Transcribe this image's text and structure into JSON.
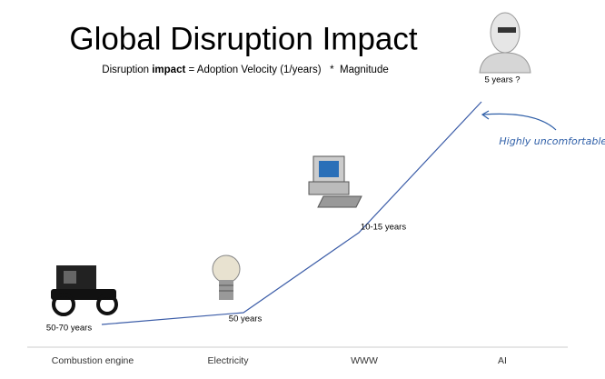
{
  "header": {
    "title": "Global Disruption Impact",
    "subtitle": [
      "Disruption ",
      "impact",
      " = Adoption Velocity (1/years)   *  Magnitude"
    ]
  },
  "points": [
    {
      "category": "Combustion engine",
      "label": "50-70 years"
    },
    {
      "category": "Electricity",
      "label": "50 years"
    },
    {
      "category": "WWW",
      "label": "10-15 years"
    },
    {
      "category": "AI",
      "label": "5 years ?"
    }
  ],
  "annotation": "Highly uncomfortable!"
}
